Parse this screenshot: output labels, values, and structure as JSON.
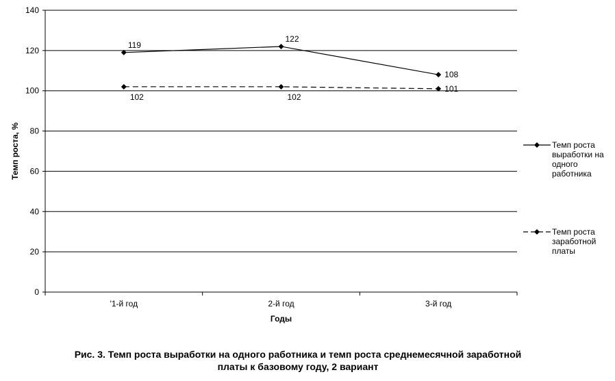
{
  "chart_data": {
    "type": "line",
    "categories": [
      "'1-й год",
      "2-й год",
      "3-й год"
    ],
    "series": [
      {
        "name": "Темп роста выработки на одного работника",
        "values": [
          119,
          122,
          108
        ],
        "data_labels": [
          "119",
          "122",
          "108"
        ],
        "line_style": "solid",
        "color": "#000000",
        "marker": "diamond"
      },
      {
        "name": "Темп роста заработной платы",
        "values": [
          102,
          102,
          101
        ],
        "data_labels": [
          "102",
          "102",
          "101"
        ],
        "line_style": "dashed",
        "color": "#000000",
        "marker": "diamond"
      }
    ],
    "xlabel": "Годы",
    "ylabel": "Темп роста, %",
    "ylim": [
      0,
      140
    ],
    "yticks": [
      "0",
      "20",
      "40",
      "60",
      "80",
      "100",
      "120",
      "140"
    ],
    "grid": "horizontal",
    "legend_position": "right"
  },
  "caption": {
    "line1": "Рис. 3. Темп роста выработки на одного работника и темп роста среднемесячной заработной",
    "line2": "платы к базовому году, 2 вариант"
  }
}
